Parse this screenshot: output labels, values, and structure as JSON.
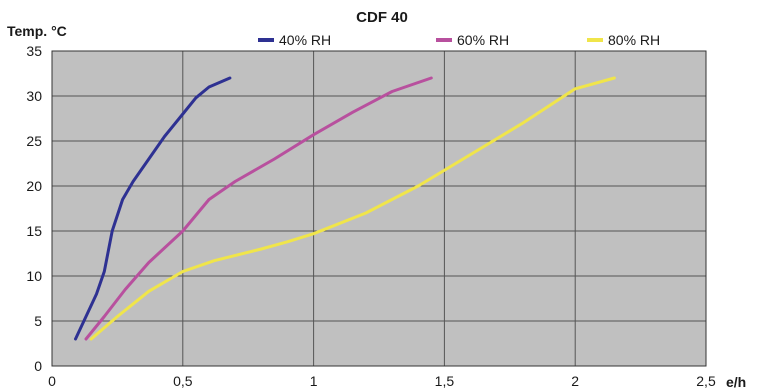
{
  "chart_data": {
    "type": "line",
    "title": "CDF 40",
    "xlabel": "e/h",
    "ylabel": "Temp. °C",
    "xlim": [
      0,
      2.5
    ],
    "ylim": [
      0,
      35
    ],
    "x_ticks": [
      "0",
      "0,5",
      "1",
      "1,5",
      "2",
      "2,5"
    ],
    "x_tick_values": [
      0,
      0.5,
      1,
      1.5,
      2,
      2.5
    ],
    "y_ticks": [
      "0",
      "5",
      "10",
      "15",
      "20",
      "25",
      "30",
      "35"
    ],
    "y_tick_values": [
      0,
      5,
      10,
      15,
      20,
      25,
      30,
      35
    ],
    "grid": true,
    "legend_position": "top",
    "plot_background": "#c0c0c0",
    "series": [
      {
        "name": "40% RH",
        "color": "#2e3192",
        "points": [
          [
            0.09,
            3
          ],
          [
            0.13,
            5.5
          ],
          [
            0.17,
            8
          ],
          [
            0.2,
            10.5
          ],
          [
            0.23,
            15
          ],
          [
            0.27,
            18.5
          ],
          [
            0.31,
            20.5
          ],
          [
            0.37,
            23
          ],
          [
            0.43,
            25.5
          ],
          [
            0.5,
            28
          ],
          [
            0.55,
            29.8
          ],
          [
            0.6,
            31
          ],
          [
            0.68,
            32
          ]
        ]
      },
      {
        "name": "60% RH",
        "color": "#b8509e",
        "points": [
          [
            0.13,
            3
          ],
          [
            0.2,
            5.5
          ],
          [
            0.28,
            8.5
          ],
          [
            0.37,
            11.5
          ],
          [
            0.5,
            15
          ],
          [
            0.6,
            18.5
          ],
          [
            0.7,
            20.5
          ],
          [
            0.85,
            23
          ],
          [
            1.0,
            25.7
          ],
          [
            1.15,
            28.2
          ],
          [
            1.3,
            30.5
          ],
          [
            1.4,
            31.5
          ],
          [
            1.45,
            32
          ]
        ]
      },
      {
        "name": "80% RH",
        "color": "#f0e54a",
        "points": [
          [
            0.15,
            3
          ],
          [
            0.25,
            5.5
          ],
          [
            0.37,
            8.3
          ],
          [
            0.5,
            10.5
          ],
          [
            0.62,
            11.7
          ],
          [
            0.8,
            13
          ],
          [
            0.9,
            13.8
          ],
          [
            1.0,
            14.7
          ],
          [
            1.2,
            17
          ],
          [
            1.4,
            20
          ],
          [
            1.6,
            23.5
          ],
          [
            1.8,
            27
          ],
          [
            2.0,
            30.8
          ],
          [
            2.15,
            32
          ]
        ]
      }
    ]
  }
}
